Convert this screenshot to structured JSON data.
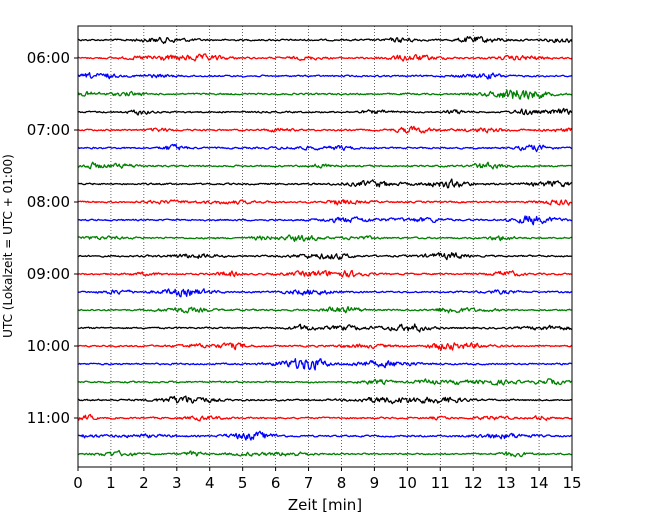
{
  "chart_data": {
    "type": "line",
    "title": "",
    "xlabel": "Zeit  [min]",
    "ylabel": "UTC (Lokalzeit = UTC + 01:00)",
    "xlim": [
      0,
      15
    ],
    "x_ticks": [
      0,
      1,
      2,
      3,
      4,
      5,
      6,
      7,
      8,
      9,
      10,
      11,
      12,
      13,
      14,
      15
    ],
    "y_tick_labels": [
      "06:00",
      "07:00",
      "08:00",
      "09:00",
      "10:00",
      "11:00"
    ],
    "grid": "vertical dotted",
    "trace_interval_minutes": 15,
    "traces": [
      {
        "start": "05:45",
        "color": "#000000"
      },
      {
        "start": "06:00",
        "color": "#ff0000"
      },
      {
        "start": "06:15",
        "color": "#0000ff"
      },
      {
        "start": "06:30",
        "color": "#008000"
      },
      {
        "start": "06:45",
        "color": "#000000"
      },
      {
        "start": "07:00",
        "color": "#ff0000"
      },
      {
        "start": "07:15",
        "color": "#0000ff"
      },
      {
        "start": "07:30",
        "color": "#008000"
      },
      {
        "start": "07:45",
        "color": "#000000"
      },
      {
        "start": "08:00",
        "color": "#ff0000"
      },
      {
        "start": "08:15",
        "color": "#0000ff"
      },
      {
        "start": "08:30",
        "color": "#008000"
      },
      {
        "start": "08:45",
        "color": "#000000"
      },
      {
        "start": "09:00",
        "color": "#ff0000"
      },
      {
        "start": "09:15",
        "color": "#0000ff"
      },
      {
        "start": "09:30",
        "color": "#008000"
      },
      {
        "start": "09:45",
        "color": "#000000"
      },
      {
        "start": "10:00",
        "color": "#ff0000"
      },
      {
        "start": "10:15",
        "color": "#0000ff"
      },
      {
        "start": "10:30",
        "color": "#008000"
      },
      {
        "start": "10:45",
        "color": "#000000"
      },
      {
        "start": "11:00",
        "color": "#ff0000"
      },
      {
        "start": "11:15",
        "color": "#0000ff"
      },
      {
        "start": "11:30",
        "color": "#008000"
      }
    ]
  }
}
